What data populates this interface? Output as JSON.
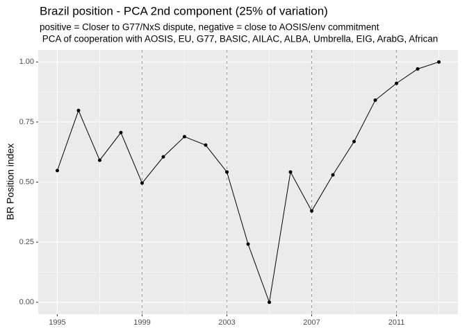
{
  "chart_data": {
    "type": "line",
    "title": "Brazil position - PCA 2nd component (25% of variation)",
    "subtitle": [
      "positive = Closer to G77/NxS dispute, negative = close to AOSIS/env commitment",
      " PCA of cooperation with AOSIS, EU, G77, BASIC, AILAC, ALBA, Umbrella, EIG, ArabG, African"
    ],
    "y_label": "BR Position index",
    "x": [
      1995,
      1996,
      1997,
      1998,
      1999,
      2000,
      2001,
      2002,
      2003,
      2004,
      2005,
      2006,
      2007,
      2008,
      2009,
      2010,
      2011,
      2012,
      2013
    ],
    "values": [
      0.548,
      0.798,
      0.591,
      0.706,
      0.496,
      0.605,
      0.689,
      0.654,
      0.542,
      0.242,
      0,
      0.542,
      0.38,
      0.53,
      0.669,
      0.841,
      0.911,
      0.971,
      1.0
    ],
    "color": "#000000",
    "xlim": [
      1994.1,
      2013.9
    ],
    "xticks": [
      1995,
      1999,
      2003,
      2007,
      2011
    ],
    "ylim": [
      -0.05,
      1.05
    ],
    "yticks": [
      {
        "value": 0,
        "label": "0.00"
      },
      {
        "value": 0.25,
        "label": "0.25"
      },
      {
        "value": 0.5,
        "label": "0.50"
      },
      {
        "value": 0.75,
        "label": "0.75"
      },
      {
        "value": 1,
        "label": "1.00"
      }
    ],
    "reference_lines": [
      1999,
      2003,
      2007,
      2011
    ],
    "grid": true
  }
}
